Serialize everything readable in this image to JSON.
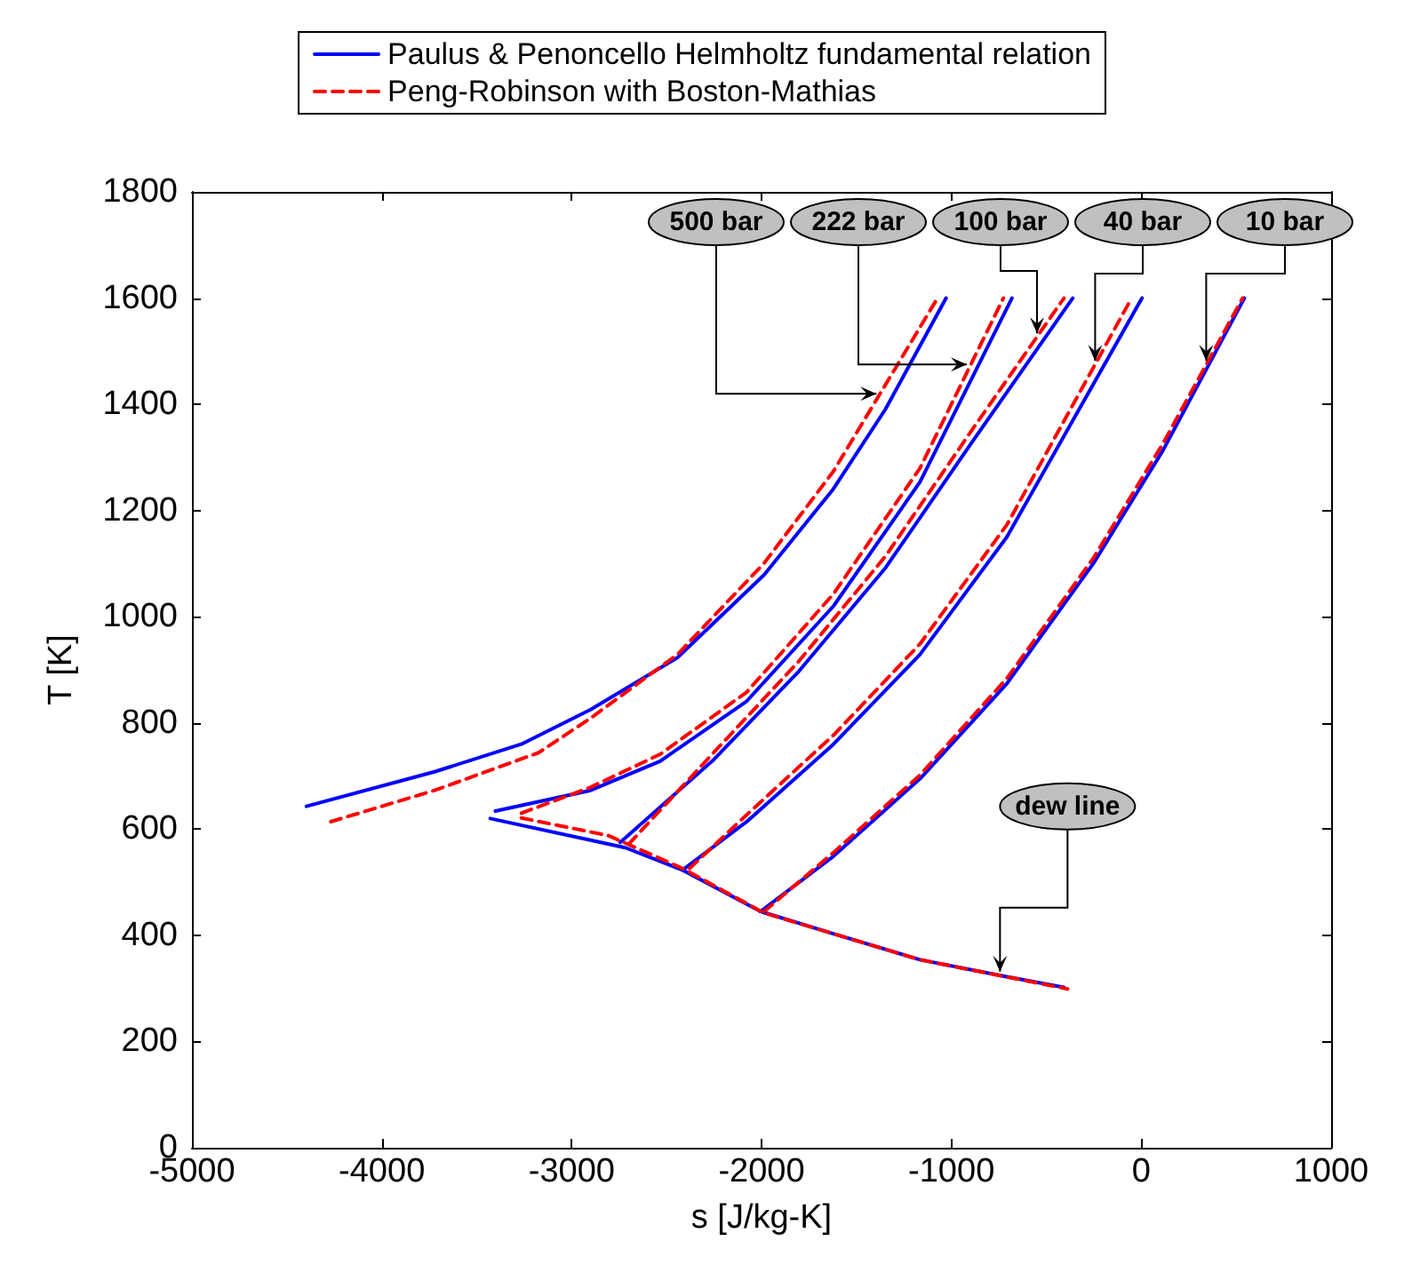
{
  "chart_data": {
    "type": "line",
    "xlabel": "s [J/kg-K]",
    "ylabel": "T [K]",
    "xlim": [
      -5000,
      1000
    ],
    "xticks": [
      -5000,
      -4000,
      -3000,
      -2000,
      -1000,
      0,
      1000
    ],
    "ylim": [
      0,
      1800
    ],
    "yticks": [
      0,
      200,
      400,
      600,
      800,
      1000,
      1200,
      1400,
      1600,
      1800
    ],
    "grid": false,
    "legend": "top",
    "marker": "none",
    "series": [
      {
        "name": "Paulus & Penoncello Helmholtz fundamental relation",
        "color": "#0000ff",
        "line_style": "solid",
        "x": [
          -4397,
          -3722,
          -3265,
          -2900,
          -2443,
          -1986,
          -1621,
          -1347,
          -1028
        ],
        "values": [
          643,
          708,
          760,
          825,
          923,
          1079,
          1241,
          1391,
          1600
        ]
      },
      {
        "color": "#0000ff",
        "line_style": "solid",
        "x": [
          -3402,
          -2900,
          -2534,
          -2078,
          -1621,
          -1165,
          -681
        ],
        "values": [
          634,
          673,
          728,
          841,
          1020,
          1254,
          1600
        ]
      },
      {
        "color": "#0000ff",
        "line_style": "solid",
        "x": [
          -2744,
          -2260,
          -1804,
          -1347,
          -891,
          -361
        ],
        "values": [
          575,
          728,
          897,
          1092,
          1329,
          1600
        ]
      },
      {
        "color": "#0000ff",
        "line_style": "solid",
        "x": [
          -2416,
          -2078,
          -1621,
          -1165,
          -708,
          4
        ],
        "values": [
          523,
          614,
          760,
          929,
          1150,
          1600
        ]
      },
      {
        "color": "#0000ff",
        "line_style": "solid",
        "x": [
          -2005,
          -1621,
          -1165,
          -708,
          -251,
          114,
          543
        ],
        "values": [
          445,
          549,
          695,
          874,
          1101,
          1313,
          1600
        ]
      },
      {
        "color": "#0000ff",
        "line_style": "solid",
        "x": [
          -3429,
          -2717,
          -2416,
          -2005,
          -1621,
          -1165,
          -708,
          -407
        ],
        "values": [
          620,
          565,
          523,
          445,
          403,
          354,
          322,
          302
        ]
      },
      {
        "name": "Peng-Robinson with Boston-Mathias",
        "color": "#ff0000",
        "line_style": "dashed",
        "x": [
          -4269,
          -3722,
          -3174,
          -2900,
          -2443,
          -1986,
          -1621,
          -1073
        ],
        "values": [
          614,
          673,
          744,
          809,
          929,
          1101,
          1274,
          1600
        ]
      },
      {
        "color": "#ff0000",
        "line_style": "dashed",
        "x": [
          -3265,
          -2900,
          -2534,
          -2078,
          -1621,
          -1165,
          -726
        ],
        "values": [
          630,
          679,
          741,
          858,
          1043,
          1280,
          1600
        ]
      },
      {
        "color": "#ff0000",
        "line_style": "dashed",
        "x": [
          -2699,
          -2260,
          -1804,
          -1347,
          -891,
          -407
        ],
        "values": [
          572,
          741,
          916,
          1114,
          1352,
          1600
        ]
      },
      {
        "color": "#ff0000",
        "line_style": "dashed",
        "x": [
          -2379,
          -2078,
          -1621,
          -1165,
          -708,
          -51
        ],
        "values": [
          526,
          627,
          777,
          949,
          1173,
          1600
        ]
      },
      {
        "color": "#ff0000",
        "line_style": "dashed",
        "x": [
          -1986,
          -1621,
          -1165,
          -708,
          -251,
          114,
          534
        ],
        "values": [
          445,
          556,
          702,
          884,
          1111,
          1326,
          1600
        ]
      },
      {
        "color": "#ff0000",
        "line_style": "dashed",
        "x": [
          -3265,
          -2808,
          -2416,
          -1986,
          -1165,
          -388
        ],
        "values": [
          621,
          588,
          526,
          442,
          354,
          299
        ]
      }
    ],
    "annotations": [
      {
        "text": "500 bar",
        "x": -1376,
        "y": 1420
      },
      {
        "text": "222 bar",
        "x": -900,
        "y": 1475
      },
      {
        "text": "100 bar",
        "x": -549,
        "y": 1527
      },
      {
        "text": "40 bar",
        "x": -243,
        "y": 1475
      },
      {
        "text": "10 bar",
        "x": 342,
        "y": 1475
      },
      {
        "text": "dew line",
        "x": -744,
        "y": 325
      }
    ]
  }
}
